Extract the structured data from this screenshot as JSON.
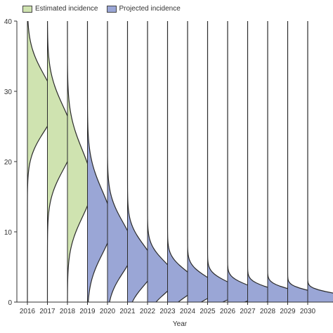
{
  "chart_data": {
    "type": "area",
    "subtype": "ridgeline-density",
    "orientation": "vertical",
    "xlabel": "Year",
    "ylabel": "",
    "ylim": [
      0,
      40
    ],
    "yticks": [
      0,
      10,
      20,
      30,
      40
    ],
    "categories": [
      "2016",
      "2017",
      "2018",
      "2019",
      "2020",
      "2021",
      "2022",
      "2023",
      "2024",
      "2025",
      "2026",
      "2027",
      "2028",
      "2029",
      "2030"
    ],
    "legend_position": "top-left",
    "grid": false,
    "series": [
      {
        "name": "Estimated incidence",
        "color": "#cfe3b0",
        "years": [
          "2016",
          "2017",
          "2018"
        ]
      },
      {
        "name": "Projected incidence",
        "color": "#9aa6d6",
        "years": [
          "2019",
          "2020",
          "2021",
          "2022",
          "2023",
          "2024",
          "2025",
          "2026",
          "2027",
          "2028",
          "2029",
          "2030"
        ]
      }
    ],
    "distributions": [
      {
        "year": "2016",
        "series": "Estimated incidence",
        "mode": 28.0,
        "spread": 4.0,
        "peak_width": 0.85
      },
      {
        "year": "2017",
        "series": "Estimated incidence",
        "mode": 23.0,
        "spread": 4.5,
        "peak_width": 0.8
      },
      {
        "year": "2018",
        "series": "Estimated incidence",
        "mode": 16.5,
        "spread": 4.8,
        "peak_width": 0.75
      },
      {
        "year": "2019",
        "series": "Projected incidence",
        "mode": 11.0,
        "spread": 4.5,
        "peak_width": 0.75
      },
      {
        "year": "2020",
        "series": "Projected incidence",
        "mode": 7.5,
        "spread": 3.6,
        "peak_width": 0.78
      },
      {
        "year": "2021",
        "series": "Projected incidence",
        "mode": 5.0,
        "spread": 2.9,
        "peak_width": 0.82
      },
      {
        "year": "2022",
        "series": "Projected incidence",
        "mode": 3.3,
        "spread": 2.3,
        "peak_width": 0.86
      },
      {
        "year": "2023",
        "series": "Projected incidence",
        "mode": 2.5,
        "spread": 1.9,
        "peak_width": 0.9
      },
      {
        "year": "2024",
        "series": "Projected incidence",
        "mode": 1.9,
        "spread": 1.6,
        "peak_width": 0.95
      },
      {
        "year": "2025",
        "series": "Projected incidence",
        "mode": 1.5,
        "spread": 1.3,
        "peak_width": 1.0
      },
      {
        "year": "2026",
        "series": "Projected incidence",
        "mode": 1.2,
        "spread": 1.1,
        "peak_width": 1.05
      },
      {
        "year": "2027",
        "series": "Projected incidence",
        "mode": 1.0,
        "spread": 0.95,
        "peak_width": 1.1
      },
      {
        "year": "2028",
        "series": "Projected incidence",
        "mode": 0.9,
        "spread": 0.85,
        "peak_width": 1.15
      },
      {
        "year": "2029",
        "series": "Projected incidence",
        "mode": 0.75,
        "spread": 0.75,
        "peak_width": 1.2
      },
      {
        "year": "2030",
        "series": "Projected incidence",
        "mode": 0.6,
        "spread": 0.65,
        "peak_width": 1.25
      }
    ]
  }
}
